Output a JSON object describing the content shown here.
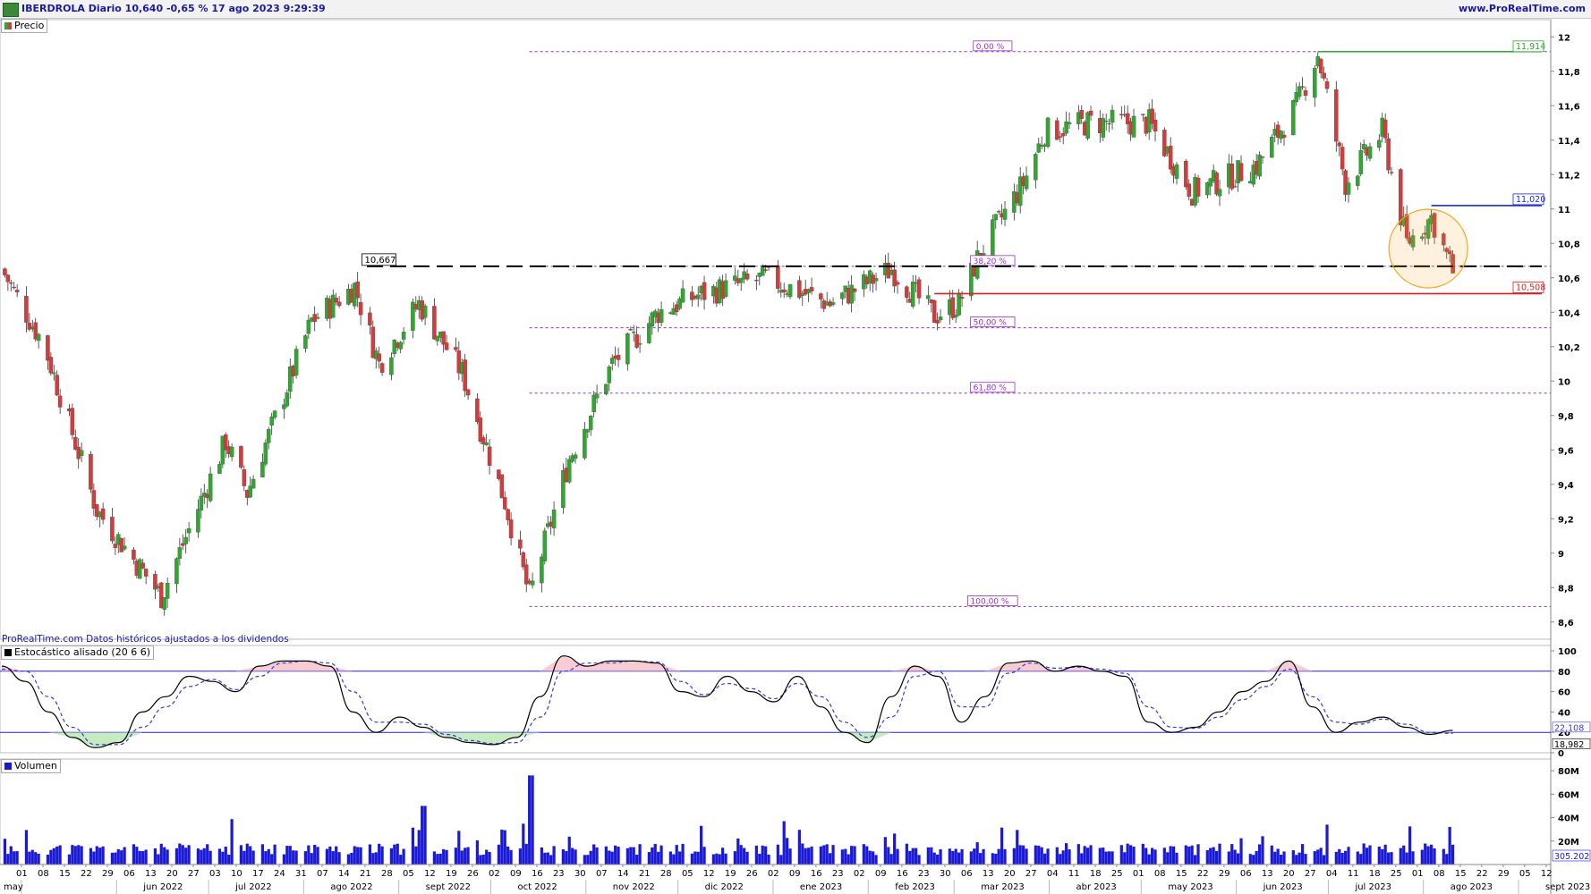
{
  "header": {
    "title": "IBERDROLA Diario 10,640 -0,65 % 17 ago 2023 9:29:39",
    "brand": "www.ProRealTime.com"
  },
  "footnote": "ProRealTime.com Datos históricos ajustados a los dividendos",
  "colors": {
    "up": "#2ea82e",
    "down": "#d63a3a",
    "fib": "#9b30c8",
    "stoch_k": "#000000",
    "stoch_d": "#3a3ad6",
    "level_line": "#2222cc",
    "volume": "#1a1ad6",
    "support": "#e02020",
    "resistance": "#1a2ad6",
    "high": "#2ea82e",
    "highlight": "#f5a623"
  },
  "chart_data": [
    {
      "type": "candlestick",
      "panel_label": "Precio",
      "ylim": [
        8.5,
        12.1
      ],
      "y_ticks": [
        "12",
        "11,8",
        "11,6",
        "11,4",
        "11,2",
        "11",
        "10,8",
        "10,6",
        "10,4",
        "10,2",
        "10",
        "9,8",
        "9,6",
        "9,4",
        "9,2",
        "9",
        "8,8",
        "8,6"
      ],
      "y_tick_values": [
        12,
        11.8,
        11.6,
        11.4,
        11.2,
        11,
        10.8,
        10.6,
        10.4,
        10.2,
        10,
        9.8,
        9.6,
        9.4,
        9.2,
        9,
        8.8,
        8.6
      ],
      "key_points": [
        {
          "date": "2022-05-01",
          "close": 10.65
        },
        {
          "date": "2022-05-15",
          "close": 10.2
        },
        {
          "date": "2022-06-01",
          "close": 9.25
        },
        {
          "date": "2022-06-22",
          "close": 8.75
        },
        {
          "date": "2022-07-13",
          "close": 9.65
        },
        {
          "date": "2022-07-20",
          "close": 9.35
        },
        {
          "date": "2022-08-10",
          "close": 10.35
        },
        {
          "date": "2022-08-24",
          "close": 10.55
        },
        {
          "date": "2022-09-01",
          "close": 10.1
        },
        {
          "date": "2022-09-14",
          "close": 10.45
        },
        {
          "date": "2022-09-28",
          "close": 10.05
        },
        {
          "date": "2022-10-12",
          "close": 9.3
        },
        {
          "date": "2022-10-20",
          "close": 8.75
        },
        {
          "date": "2022-11-02",
          "close": 9.55
        },
        {
          "date": "2022-11-16",
          "close": 10.1
        },
        {
          "date": "2022-12-01",
          "close": 10.4
        },
        {
          "date": "2022-12-14",
          "close": 10.5
        },
        {
          "date": "2023-01-05",
          "close": 10.6
        },
        {
          "date": "2023-01-26",
          "close": 10.45
        },
        {
          "date": "2023-02-15",
          "close": 10.65
        },
        {
          "date": "2023-03-01",
          "close": 10.38
        },
        {
          "date": "2023-03-09",
          "close": 10.45
        },
        {
          "date": "2023-03-16",
          "close": 10.75
        },
        {
          "date": "2023-03-30",
          "close": 11.15
        },
        {
          "date": "2023-04-06",
          "close": 11.45
        },
        {
          "date": "2023-04-20",
          "close": 11.5
        },
        {
          "date": "2023-05-10",
          "close": 11.5
        },
        {
          "date": "2023-05-24",
          "close": 11.1
        },
        {
          "date": "2023-06-14",
          "close": 11.25
        },
        {
          "date": "2023-06-27",
          "close": 11.6
        },
        {
          "date": "2023-07-04",
          "close": 11.9
        },
        {
          "date": "2023-07-13",
          "close": 11.15
        },
        {
          "date": "2023-07-25",
          "close": 11.45
        },
        {
          "date": "2023-08-02",
          "close": 10.8
        },
        {
          "date": "2023-08-10",
          "close": 10.95
        },
        {
          "date": "2023-08-17",
          "close": 10.64
        }
      ],
      "annotations": {
        "fib_levels": [
          {
            "label": "0,00 %",
            "value": 11.914
          },
          {
            "label": "38,20 %",
            "value": 10.667
          },
          {
            "label": "50,00 %",
            "value": 10.31
          },
          {
            "label": "61,80 %",
            "value": 9.93
          },
          {
            "label": "100,00 %",
            "value": 8.69
          }
        ],
        "dashed_level": {
          "label": "10,667",
          "value": 10.667
        },
        "high_level": {
          "label": "11,914",
          "value": 11.914
        },
        "resistance": {
          "label": "11,020",
          "value": 11.02
        },
        "support": {
          "label": "10,508",
          "value": 10.508
        }
      },
      "x_tick_labels": [
        "01",
        "08",
        "15",
        "22",
        "29",
        "06",
        "13",
        "20",
        "27",
        "03",
        "10",
        "17",
        "24",
        "31",
        "07",
        "14",
        "21",
        "28",
        "05",
        "12",
        "19",
        "26",
        "02",
        "09",
        "16",
        "23",
        "30",
        "07",
        "14",
        "21",
        "28",
        "05",
        "12",
        "19",
        "26",
        "02",
        "09",
        "16",
        "23",
        "02",
        "09",
        "16",
        "23",
        "30",
        "06",
        "13",
        "20",
        "27",
        "04",
        "11",
        "18",
        "25",
        "01",
        "08",
        "15",
        "22",
        "29",
        "06",
        "13",
        "20",
        "27",
        "04",
        "11",
        "18",
        "25",
        "01",
        "08",
        "15",
        "22",
        "29",
        "05",
        "12"
      ],
      "month_labels": [
        "may",
        "jun 2022",
        "jul 2022",
        "ago 2022",
        "sept 2022",
        "oct 2022",
        "nov 2022",
        "dic 2022",
        "ene 2023",
        "feb 2023",
        "mar 2023",
        "abr 2023",
        "may 2023",
        "jun 2023",
        "jul 2023",
        "ago 2023",
        "sept 2023"
      ]
    },
    {
      "type": "line",
      "panel_label": "Estocástico alisado (20 6 6)",
      "ylim": [
        0,
        100
      ],
      "y_ticks": [
        "100",
        "80",
        "60",
        "40",
        "20",
        "0"
      ],
      "y_tick_values": [
        100,
        80,
        60,
        40,
        20,
        0
      ],
      "levels": [
        80,
        20
      ],
      "last_values": {
        "k": "22,108",
        "d": "18,982"
      },
      "series": [
        {
          "values": [
            85,
            70,
            40,
            15,
            5,
            10,
            40,
            55,
            75,
            70,
            60,
            85,
            90,
            90,
            85,
            40,
            20,
            35,
            25,
            15,
            10,
            8,
            15,
            55,
            95,
            85,
            90,
            90,
            88,
            60,
            55,
            75,
            60,
            50,
            75,
            45,
            20,
            10,
            55,
            85,
            75,
            30,
            55,
            88,
            90,
            80,
            85,
            80,
            75,
            30,
            20,
            25,
            40,
            60,
            70,
            90,
            45,
            20,
            30,
            35,
            25,
            18,
            22
          ]
        },
        {
          "values": [
            82,
            80,
            55,
            25,
            8,
            8,
            25,
            45,
            65,
            72,
            62,
            75,
            88,
            90,
            88,
            60,
            30,
            30,
            28,
            18,
            12,
            9,
            10,
            35,
            80,
            88,
            88,
            90,
            89,
            70,
            57,
            68,
            63,
            53,
            68,
            55,
            30,
            15,
            35,
            75,
            80,
            45,
            45,
            78,
            88,
            83,
            84,
            82,
            78,
            45,
            25,
            24,
            35,
            52,
            65,
            82,
            55,
            30,
            28,
            33,
            28,
            20,
            19
          ]
        }
      ]
    },
    {
      "type": "bar",
      "panel_label": "Volumen",
      "ylim": [
        0,
        90000000
      ],
      "y_ticks": [
        "80M",
        "60M",
        "40M",
        "20M"
      ],
      "y_tick_values": [
        80000000,
        60000000,
        40000000,
        20000000
      ],
      "last_value": "305.202"
    }
  ]
}
